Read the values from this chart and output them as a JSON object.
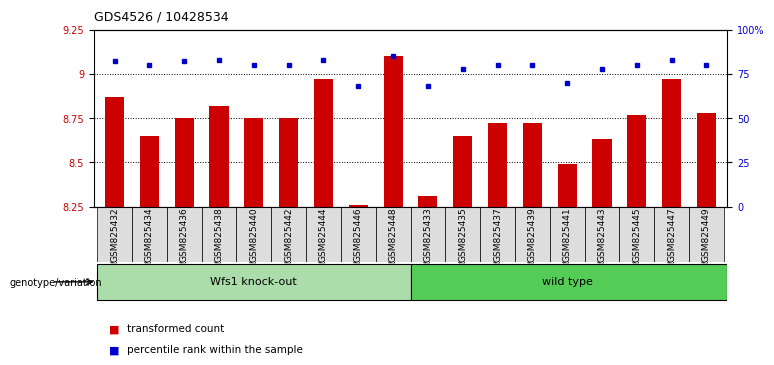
{
  "title": "GDS4526 / 10428534",
  "categories": [
    "GSM825432",
    "GSM825434",
    "GSM825436",
    "GSM825438",
    "GSM825440",
    "GSM825442",
    "GSM825444",
    "GSM825446",
    "GSM825448",
    "GSM825433",
    "GSM825435",
    "GSM825437",
    "GSM825439",
    "GSM825441",
    "GSM825443",
    "GSM825445",
    "GSM825447",
    "GSM825449"
  ],
  "red_values": [
    8.87,
    8.65,
    8.75,
    8.82,
    8.75,
    8.75,
    8.97,
    8.26,
    9.1,
    8.31,
    8.65,
    8.72,
    8.72,
    8.49,
    8.63,
    8.77,
    8.97,
    8.78
  ],
  "blue_values": [
    82,
    80,
    82,
    83,
    80,
    80,
    83,
    68,
    85,
    68,
    78,
    80,
    80,
    70,
    78,
    80,
    83,
    80
  ],
  "ylim_left": [
    8.25,
    9.25
  ],
  "ylim_right": [
    0,
    100
  ],
  "yticks_left": [
    8.25,
    8.5,
    8.75,
    9.0,
    9.25
  ],
  "ytick_labels_left": [
    "8.25",
    "8.5",
    "8.75",
    "9",
    "9.25"
  ],
  "yticks_right": [
    0,
    25,
    50,
    75,
    100
  ],
  "ytick_labels_right": [
    "0",
    "25",
    "50",
    "75",
    "100%"
  ],
  "group1_label": "Wfs1 knock-out",
  "group2_label": "wild type",
  "group1_count": 9,
  "group2_count": 9,
  "genotype_label": "genotype/variation",
  "legend_red": "transformed count",
  "legend_blue": "percentile rank within the sample",
  "bar_color": "#cc0000",
  "dot_color": "#0000cc",
  "group1_color": "#aaddaa",
  "group2_color": "#55cc55",
  "background_color": "#ffffff",
  "baseline": 8.25
}
